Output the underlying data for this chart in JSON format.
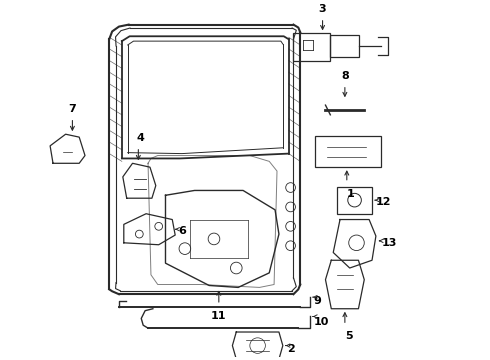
{
  "bg_color": "#ffffff",
  "line_color": "#2a2a2a",
  "text_color": "#000000",
  "fig_width": 4.9,
  "fig_height": 3.6,
  "dpi": 100
}
